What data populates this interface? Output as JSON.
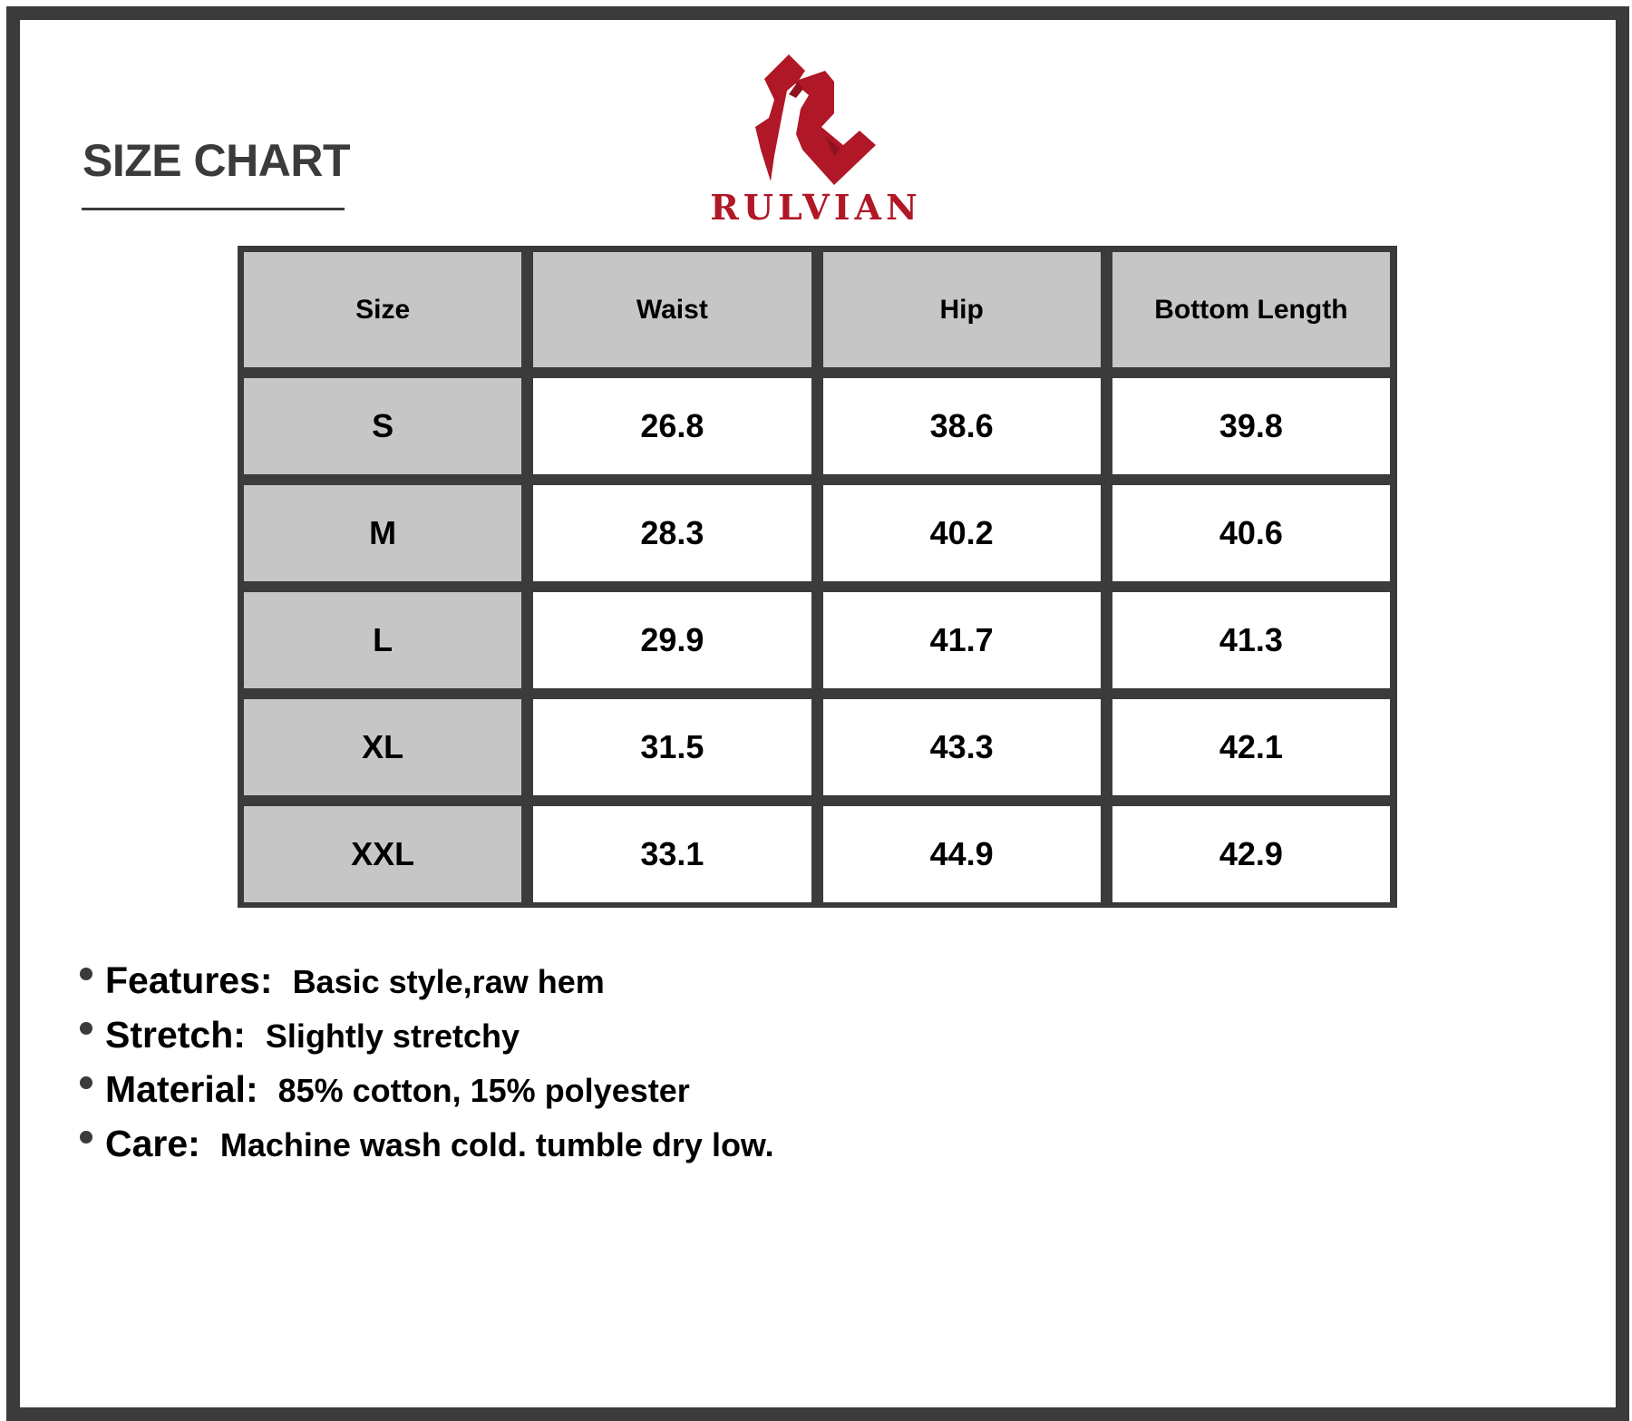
{
  "title": "SIZE CHART",
  "brand": {
    "name": "RULVIAN",
    "color": "#b01827"
  },
  "table": {
    "headers": [
      "Size",
      "Waist",
      "Hip",
      "Bottom Length"
    ],
    "rows": [
      [
        "S",
        "26.8",
        "38.6",
        "39.8"
      ],
      [
        "M",
        "28.3",
        "40.2",
        "40.6"
      ],
      [
        "L",
        "29.9",
        "41.7",
        "41.3"
      ],
      [
        "XL",
        "31.5",
        "43.3",
        "42.1"
      ],
      [
        "XXL",
        "33.1",
        "44.9",
        "42.9"
      ]
    ]
  },
  "details": [
    {
      "label": "Features:",
      "value": "Basic style,raw hem"
    },
    {
      "label": "Stretch:",
      "value": "Slightly stretchy"
    },
    {
      "label": "Material:",
      "value": "85% cotton, 15% polyester"
    },
    {
      "label": "Care:",
      "value": "Machine wash cold. tumble dry low."
    }
  ]
}
